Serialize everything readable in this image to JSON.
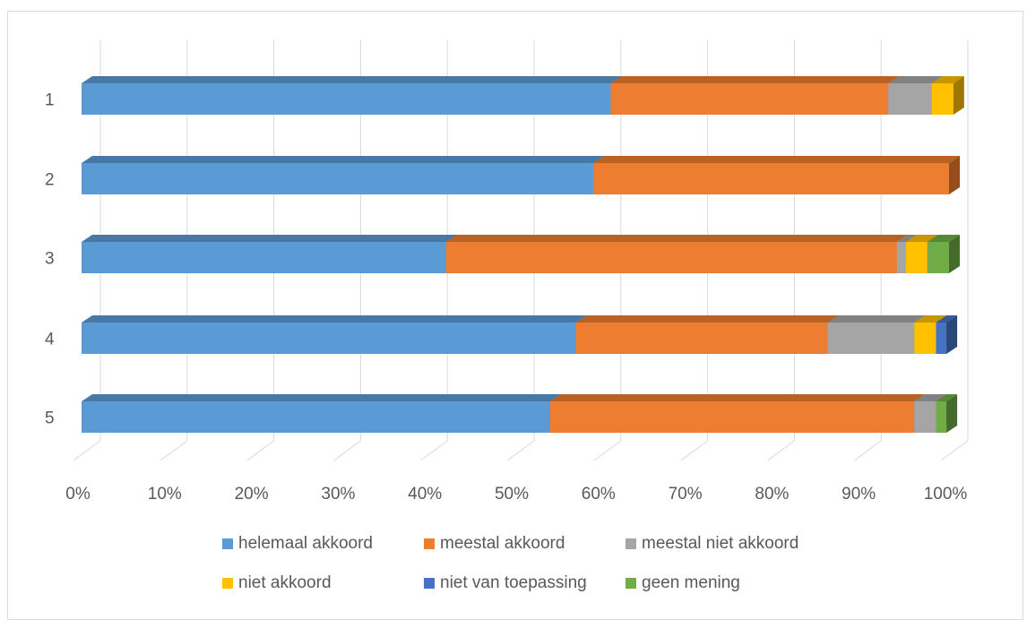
{
  "chart_data": {
    "type": "bar",
    "orientation": "horizontal",
    "stacked": "percent",
    "three_d": true,
    "categories": [
      "1",
      "2",
      "3",
      "4",
      "5"
    ],
    "series": [
      {
        "name": "helemaal akkoord",
        "color": "#5b9bd5",
        "values": [
          61,
          59,
          42,
          57,
          54
        ]
      },
      {
        "name": "meestal akkoord",
        "color": "#ed7d31",
        "values": [
          32,
          41,
          52,
          29,
          42
        ]
      },
      {
        "name": "meestal niet akkoord",
        "color": "#a5a5a5",
        "values": [
          5,
          0,
          1,
          10,
          2.5
        ]
      },
      {
        "name": "niet akkoord",
        "color": "#ffc000",
        "values": [
          2.5,
          0,
          2.5,
          2.5,
          0
        ]
      },
      {
        "name": "niet van toepassing",
        "color": "#4472c4",
        "values": [
          0,
          0,
          0,
          1.2,
          0
        ]
      },
      {
        "name": "geen mening",
        "color": "#70ad47",
        "values": [
          0,
          0,
          2.5,
          0,
          1.2
        ]
      }
    ],
    "xlim": [
      0,
      100
    ],
    "xticks": [
      "0%",
      "10%",
      "20%",
      "30%",
      "40%",
      "50%",
      "60%",
      "70%",
      "80%",
      "90%",
      "100%"
    ],
    "grid": true,
    "legend_position": "bottom"
  }
}
